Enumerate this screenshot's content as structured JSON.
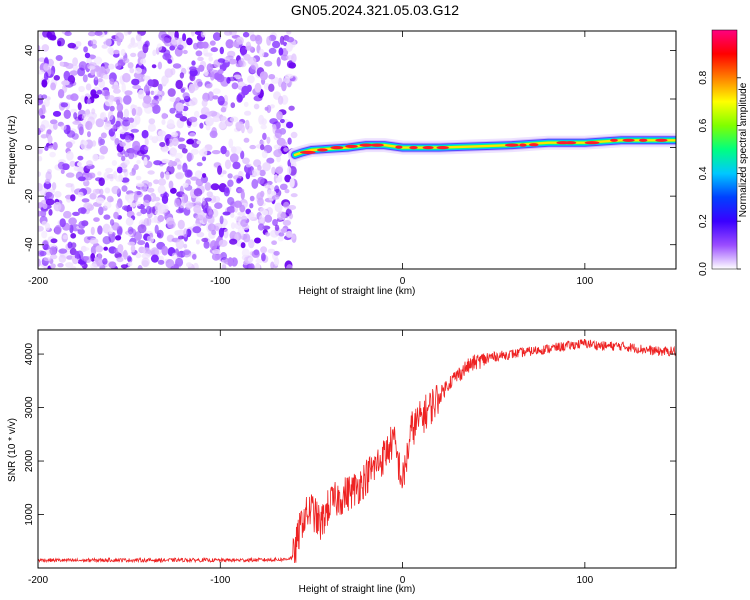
{
  "title": "GN05.2024.321.05.03.G12",
  "chart_data": [
    {
      "type": "heatmap",
      "title": "GN05.2024.321.05.03.G12",
      "xlabel": "Height of straight line (km)",
      "ylabel": "Frequency (Hz)",
      "xlim": [
        -200,
        150
      ],
      "ylim": [
        -50,
        48
      ],
      "x_ticks": [
        "-200",
        "-100",
        "0",
        "100"
      ],
      "x_tick_values": [
        -200,
        -100,
        0,
        100
      ],
      "y_ticks": [
        "40",
        "20",
        "0",
        "-20",
        "-40"
      ],
      "y_tick_values": [
        40,
        20,
        0,
        -20,
        -40
      ],
      "noise_region_x": [
        -200,
        -59
      ],
      "ridge": [
        {
          "x": -59,
          "y": -3
        },
        {
          "x": -55,
          "y": -2
        },
        {
          "x": -50,
          "y": -1
        },
        {
          "x": -40,
          "y": -0.5
        },
        {
          "x": -30,
          "y": 0
        },
        {
          "x": -20,
          "y": 1
        },
        {
          "x": -10,
          "y": 1
        },
        {
          "x": 0,
          "y": 0
        },
        {
          "x": 20,
          "y": 0
        },
        {
          "x": 40,
          "y": 0.5
        },
        {
          "x": 60,
          "y": 1
        },
        {
          "x": 80,
          "y": 2
        },
        {
          "x": 100,
          "y": 2
        },
        {
          "x": 120,
          "y": 3
        },
        {
          "x": 150,
          "y": 3
        }
      ],
      "colorbar": {
        "label": "Normalized spectral amplitude",
        "range": [
          0,
          1
        ],
        "ticks": [
          "0.0",
          "0.2",
          "0.4",
          "0.6",
          "0.8"
        ],
        "tick_values": [
          0.0,
          0.2,
          0.4,
          0.6,
          0.8
        ],
        "colors": [
          "#ffffff",
          "#9a4dff",
          "#3a00ff",
          "#0040ff",
          "#00c8ff",
          "#00ff80",
          "#80ff00",
          "#ffff00",
          "#ff8000",
          "#ff0000",
          "#ff0080"
        ]
      }
    },
    {
      "type": "line",
      "xlabel": "Height of straight line (km)",
      "ylabel": "SNR (10 * v/v)",
      "xlim": [
        -200,
        150
      ],
      "ylim": [
        0,
        4450
      ],
      "x_ticks": [
        "-200",
        "-100",
        "0",
        "100"
      ],
      "x_tick_values": [
        -200,
        -100,
        0,
        100
      ],
      "y_ticks": [
        "1000",
        "2000",
        "3000",
        "4000"
      ],
      "y_tick_values": [
        1000,
        2000,
        3000,
        4000
      ],
      "color": "#ee2222",
      "series": [
        {
          "x": [
            -200,
            -180,
            -160,
            -140,
            -120,
            -100,
            -80,
            -65,
            -60,
            -55,
            -50,
            -45,
            -40,
            -35,
            -30,
            -25,
            -20,
            -15,
            -10,
            -5,
            0,
            5,
            10,
            15,
            20,
            25,
            30,
            35,
            40,
            50,
            60,
            70,
            80,
            90,
            100,
            110,
            120,
            130,
            140,
            150
          ],
          "values": [
            150,
            140,
            150,
            145,
            150,
            145,
            150,
            160,
            200,
            900,
            1100,
            800,
            1200,
            1300,
            1400,
            1500,
            1700,
            1900,
            2100,
            2400,
            1600,
            2600,
            2800,
            3000,
            3200,
            3450,
            3600,
            3750,
            3850,
            3950,
            4000,
            4050,
            4100,
            4150,
            4200,
            4150,
            4150,
            4100,
            4050,
            4050
          ]
        }
      ]
    }
  ]
}
